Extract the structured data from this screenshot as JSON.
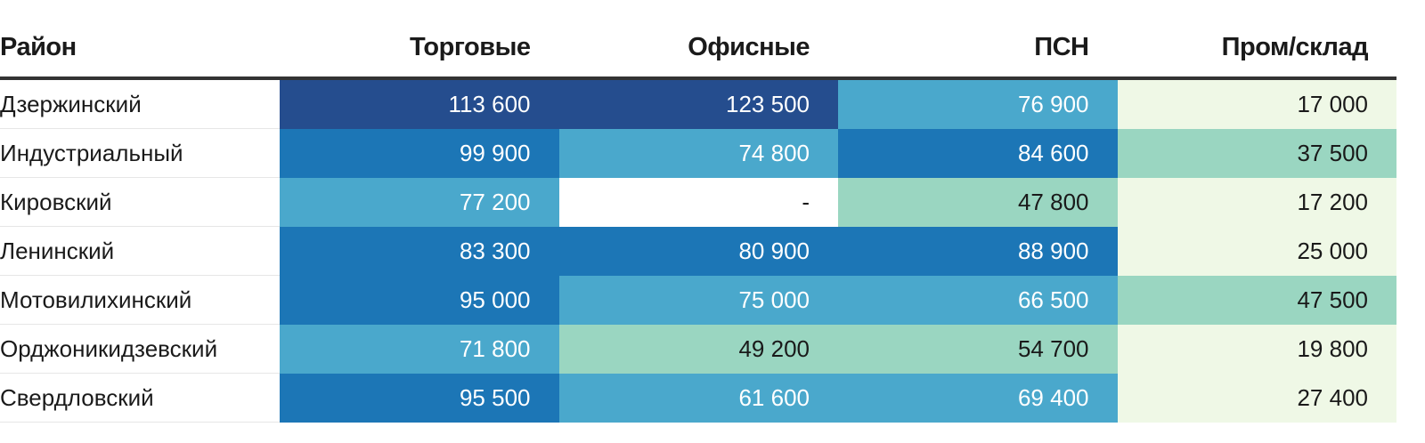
{
  "chart_data": {
    "type": "table",
    "columns": [
      "Район",
      "Торговые",
      "Офисные",
      "ПСН",
      "Пром/склад"
    ],
    "rows": [
      {
        "district": "Дзержинский",
        "values": [
          "113 600",
          "123 500",
          "76 900",
          "17 000"
        ]
      },
      {
        "district": "Индустриальный",
        "values": [
          "99 900",
          "74 800",
          "84 600",
          "37 500"
        ]
      },
      {
        "district": "Кировский",
        "values": [
          "77 200",
          "-",
          "47 800",
          "17 200"
        ]
      },
      {
        "district": "Ленинский",
        "values": [
          "83 300",
          "80 900",
          "88 900",
          "25 000"
        ]
      },
      {
        "district": "Мотовилихинский",
        "values": [
          "95 000",
          "75 000",
          "66 500",
          "47 500"
        ]
      },
      {
        "district": "Орджоникидзевский",
        "values": [
          "71 800",
          "49 200",
          "54 700",
          "19 800"
        ]
      },
      {
        "district": "Свердловский",
        "values": [
          "95 500",
          "61 600",
          "69 400",
          "27 400"
        ]
      }
    ],
    "color_scale": [
      {
        "min": 0,
        "max": 35000,
        "color": "#eff8e6",
        "text": "#1a1a1a"
      },
      {
        "min": 35000,
        "max": 60000,
        "color": "#9ad6c1",
        "text": "#1a1a1a"
      },
      {
        "min": 60000,
        "max": 79000,
        "color": "#4aa8cc",
        "text": "#ffffff"
      },
      {
        "min": 79000,
        "max": 110000,
        "color": "#1c76b6",
        "text": "#ffffff"
      },
      {
        "min": 110000,
        "max": 1000000,
        "color": "#254d8e",
        "text": "#ffffff"
      }
    ],
    "missing_color": "#ffffff"
  }
}
